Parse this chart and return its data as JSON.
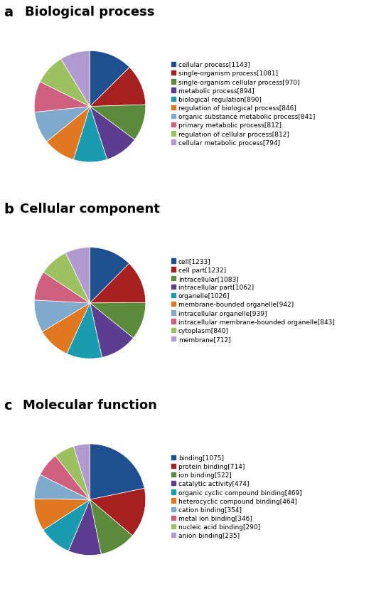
{
  "chart_a": {
    "title": "Biological process",
    "label": "a",
    "values": [
      1143,
      1081,
      970,
      894,
      890,
      846,
      841,
      812,
      812,
      794
    ],
    "labels": [
      "cellular process[1143]",
      "single-organism process[1081]",
      "single-organism cellular process[970]",
      "metabolic process[894]",
      "biological regulation[890]",
      "regulation of biological process[846]",
      "organic substance metabolic process[841]",
      "primary metabolic process[812]",
      "regulation of cellular process[812]",
      "cellular metabolic process[794]"
    ],
    "colors": [
      "#1F4E91",
      "#A52020",
      "#5A8A3A",
      "#5B3E8F",
      "#1A9BAF",
      "#E07820",
      "#7FAACC",
      "#D06080",
      "#9DC060",
      "#B09AD0"
    ]
  },
  "chart_b": {
    "title": "Cellular component",
    "label": "b",
    "values": [
      1233,
      1232,
      1083,
      1062,
      1026,
      942,
      939,
      843,
      840,
      712
    ],
    "labels": [
      "cell[1233]",
      "cell part[1232]",
      "intracellular[1083]",
      "intracellular part[1062]",
      "organelle[1026]",
      "membrane-bounded organelle[942]",
      "intracellular organelle[939]",
      "intracellular membrane-bounded organelle[843]",
      "cytoplasm[840]",
      "membrane[712]"
    ],
    "colors": [
      "#1F4E91",
      "#A52020",
      "#5A8A3A",
      "#5B3E8F",
      "#1A9BAF",
      "#E07820",
      "#7FAACC",
      "#D06080",
      "#9DC060",
      "#B09AD0"
    ]
  },
  "chart_c": {
    "title": "Molecular function",
    "label": "c",
    "values": [
      1075,
      714,
      522,
      474,
      469,
      464,
      354,
      346,
      290,
      235
    ],
    "labels": [
      "binding[1075]",
      "protein binding[714]",
      "ion binding[522]",
      "catalytic activity[474]",
      "organic cyclic compound binding[469]",
      "heterocyclic compound binding[464]",
      "cation binding[354]",
      "metal ion binding[346]",
      "nucleic acid binding[290]",
      "anion binding[235]"
    ],
    "colors": [
      "#1F4E91",
      "#A52020",
      "#5A8A3A",
      "#5B3E8F",
      "#1A9BAF",
      "#E07820",
      "#7FAACC",
      "#D06080",
      "#9DC060",
      "#B09AD0"
    ]
  },
  "legend_fontsize": 6.5,
  "title_fontsize": 13,
  "label_fontsize": 14,
  "background_color": "#FFFFFF"
}
